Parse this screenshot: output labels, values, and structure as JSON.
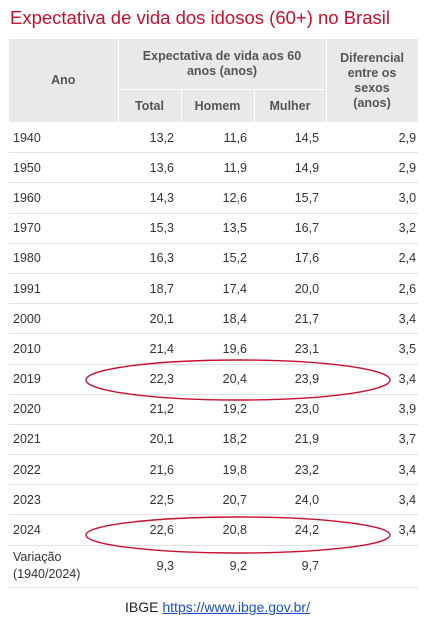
{
  "title": "Expectativa de vida dos idosos (60+) no Brasil",
  "colors": {
    "title": "#c8102e",
    "header_bg": "#e9e9e9",
    "highlight_oval": "#c8102e",
    "link": "#1a4fcf"
  },
  "table": {
    "headers": {
      "year": "Ano",
      "group": "Expectativa de vida aos 60 anos (anos)",
      "total": "Total",
      "men": "Homem",
      "women": "Mulher",
      "diff": "Diferencial entre os sexos (anos)"
    },
    "rows": [
      [
        "1940",
        "13,2",
        "11,6",
        "14,5",
        "2,9"
      ],
      [
        "1950",
        "13,6",
        "11,9",
        "14,9",
        "2,9"
      ],
      [
        "1960",
        "14,3",
        "12,6",
        "15,7",
        "3,0"
      ],
      [
        "1970",
        "15,3",
        "13,5",
        "16,7",
        "3,2"
      ],
      [
        "1980",
        "16,3",
        "15,2",
        "17,6",
        "2,4"
      ],
      [
        "1991",
        "18,7",
        "17,4",
        "20,0",
        "2,6"
      ],
      [
        "2000",
        "20,1",
        "18,4",
        "21,7",
        "3,4"
      ],
      [
        "2010",
        "21,4",
        "19,6",
        "23,1",
        "3,5"
      ],
      [
        "2019",
        "22,3",
        "20,4",
        "23,9",
        "3,4"
      ],
      [
        "2020",
        "21,2",
        "19,2",
        "23,0",
        "3,9"
      ],
      [
        "2021",
        "20,1",
        "18,2",
        "21,9",
        "3,7"
      ],
      [
        "2022",
        "21,6",
        "19,8",
        "23,2",
        "3,4"
      ],
      [
        "2023",
        "22,5",
        "20,7",
        "24,0",
        "3,4"
      ],
      [
        "2024",
        "22,6",
        "20,8",
        "24,2",
        "3,4"
      ]
    ],
    "variation": {
      "label_line1": "Variação",
      "label_line2": "(1940/2024)",
      "total": "9,3",
      "men": "9,2",
      "women": "9,7",
      "diff": ""
    }
  },
  "highlighted_years": [
    "2019",
    "2024"
  ],
  "source": {
    "label": "IBGE",
    "url": "https://www.ibge.gov.br/"
  }
}
